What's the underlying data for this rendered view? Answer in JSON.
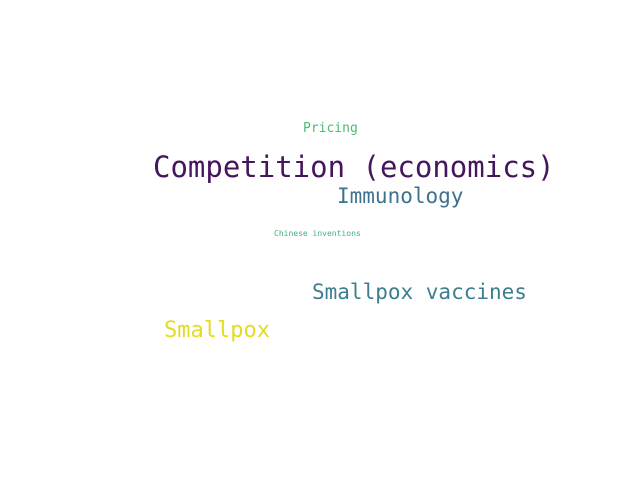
{
  "word_cloud": {
    "words": [
      {
        "text": "Pricing",
        "color": "#4dbb70"
      },
      {
        "text": "Competition (economics)",
        "color": "#45155e"
      },
      {
        "text": "Immunology",
        "color": "#3f728d"
      },
      {
        "text": "Chinese inventions",
        "color": "#3fb079"
      },
      {
        "text": "Smallpox vaccines",
        "color": "#3d7e8f"
      },
      {
        "text": "Smallpox",
        "color": "#e2dc25"
      }
    ]
  }
}
